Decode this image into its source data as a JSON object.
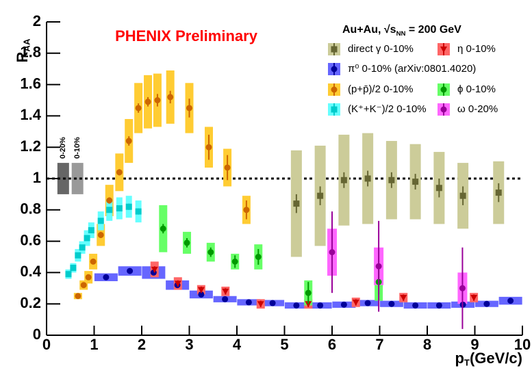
{
  "chart_data": {
    "type": "scatter",
    "title": "PHENIX Preliminary",
    "title_color": "#ff0000",
    "legend_title": [
      {
        "text": "Au+Au, √s"
      },
      {
        "text": "NN",
        "sub": true
      },
      {
        "text": " = 200 GeV"
      }
    ],
    "xlabel": [
      {
        "text": "p"
      },
      {
        "text": "T",
        "sub": true
      },
      {
        "text": "(GeV/c)"
      }
    ],
    "ylabel": [
      {
        "text": "R"
      },
      {
        "text": "AA",
        "sub": true
      }
    ],
    "xlim": [
      0,
      10
    ],
    "ylim": [
      0,
      2
    ],
    "xticks": [
      0,
      1,
      2,
      3,
      4,
      5,
      6,
      7,
      8,
      9,
      10
    ],
    "yticks": [
      0,
      0.2,
      0.4,
      0.6,
      0.8,
      1,
      1.2,
      1.4,
      1.6,
      1.8,
      2
    ],
    "reference_line": 1,
    "global_uncertainty": [
      {
        "label": "0-20%",
        "x": 0.35,
        "value": 1,
        "error": 0.1,
        "color": "#666666"
      },
      {
        "label": "0-10%",
        "x": 0.65,
        "value": 1,
        "error": 0.1,
        "color": "#999999"
      }
    ],
    "series": [
      {
        "name": "direct γ 0-10%",
        "marker": "square",
        "color": "#666633",
        "box_color": "#cccc99",
        "x": [
          5.25,
          5.75,
          6.25,
          6.75,
          7.25,
          7.75,
          8.25,
          8.75,
          9.5
        ],
        "values": [
          0.84,
          0.89,
          0.99,
          1.0,
          0.99,
          0.98,
          0.94,
          0.89,
          0.91
        ],
        "errors": [
          0.06,
          0.06,
          0.05,
          0.05,
          0.05,
          0.05,
          0.06,
          0.06,
          0.06
        ],
        "sys": [
          0.34,
          0.32,
          0.29,
          0.29,
          0.25,
          0.24,
          0.23,
          0.21,
          0.2
        ]
      },
      {
        "name": "π⁰ 0-10% (arXiv:0801.4020)",
        "marker": "circle",
        "color": "#000099",
        "box_color": "#6666ff",
        "x": [
          1.25,
          1.75,
          2.25,
          2.75,
          3.25,
          3.75,
          4.25,
          4.75,
          5.25,
          5.75,
          6.25,
          6.75,
          7.25,
          7.75,
          8.25,
          8.75,
          9.25,
          9.75
        ],
        "values": [
          0.37,
          0.41,
          0.4,
          0.32,
          0.26,
          0.23,
          0.21,
          0.205,
          0.19,
          0.19,
          0.195,
          0.205,
          0.2,
          0.19,
          0.19,
          0.195,
          0.2,
          0.22
        ],
        "errors": [
          0.01,
          0.01,
          0.01,
          0.01,
          0.01,
          0.01,
          0.01,
          0.01,
          0.01,
          0.01,
          0.01,
          0.01,
          0.01,
          0.01,
          0.01,
          0.01,
          0.01,
          0.01
        ],
        "sys": [
          0.025,
          0.03,
          0.04,
          0.03,
          0.025,
          0.02,
          0.02,
          0.02,
          0.02,
          0.02,
          0.02,
          0.02,
          0.02,
          0.02,
          0.02,
          0.02,
          0.02,
          0.025
        ]
      },
      {
        "name": "(p+p̄)/2 0-10%",
        "marker": "circle",
        "color": "#cc6600",
        "box_color": "#ffcc33",
        "x": [
          0.66,
          0.78,
          0.88,
          0.98,
          1.14,
          1.32,
          1.53,
          1.73,
          1.93,
          2.13,
          2.33,
          2.6,
          3.0,
          3.41,
          3.8,
          4.2
        ],
        "values": [
          0.25,
          0.32,
          0.37,
          0.47,
          0.64,
          0.86,
          1.04,
          1.24,
          1.45,
          1.49,
          1.5,
          1.52,
          1.45,
          1.2,
          1.07,
          0.8
        ],
        "errors": [
          0.01,
          0.01,
          0.01,
          0.01,
          0.02,
          0.02,
          0.02,
          0.03,
          0.03,
          0.03,
          0.04,
          0.04,
          0.06,
          0.08,
          0.08,
          0.06
        ],
        "sys": [
          0.02,
          0.03,
          0.04,
          0.05,
          0.07,
          0.1,
          0.12,
          0.14,
          0.16,
          0.17,
          0.17,
          0.17,
          0.16,
          0.13,
          0.12,
          0.09
        ]
      },
      {
        "name": "(K⁺+K⁻)/2 0-10%",
        "marker": "square",
        "color": "#00cccc",
        "box_color": "#66ffff",
        "x": [
          0.46,
          0.56,
          0.66,
          0.75,
          0.85,
          0.94,
          1.14,
          1.32,
          1.53,
          1.73,
          1.93
        ],
        "values": [
          0.39,
          0.43,
          0.51,
          0.56,
          0.62,
          0.67,
          0.73,
          0.8,
          0.81,
          0.82,
          0.79
        ],
        "errors": [
          0.01,
          0.01,
          0.01,
          0.01,
          0.01,
          0.01,
          0.01,
          0.01,
          0.01,
          0.02,
          0.02
        ],
        "sys": [
          0.03,
          0.03,
          0.04,
          0.04,
          0.05,
          0.05,
          0.06,
          0.07,
          0.07,
          0.07,
          0.07
        ]
      },
      {
        "name": "η 0-10%",
        "marker": "triangle-down",
        "color": "#cc0000",
        "box_color": "#ff6666",
        "x": [
          2.27,
          2.76,
          3.25,
          3.76,
          4.5,
          5.5,
          6.5,
          7.5,
          8.98
        ],
        "values": [
          0.42,
          0.33,
          0.29,
          0.28,
          0.2,
          0.2,
          0.21,
          0.24,
          0.24
        ],
        "errors": [
          0.02,
          0.02,
          0.02,
          0.02,
          0.02,
          0.02,
          0.02,
          0.02,
          0.02
        ],
        "sys": [
          0.05,
          0.04,
          0.03,
          0.03,
          0.03,
          0.03,
          0.03,
          0.03,
          0.03
        ]
      },
      {
        "name": "ϕ 0-10%",
        "marker": "circle",
        "color": "#009900",
        "box_color": "#66ff66",
        "x": [
          2.45,
          2.95,
          3.45,
          3.96,
          4.45,
          5.5,
          6.98
        ],
        "values": [
          0.68,
          0.59,
          0.53,
          0.47,
          0.5,
          0.27,
          0.34
        ],
        "errors": [
          0.03,
          0.03,
          0.03,
          0.04,
          0.05,
          0.07,
          0.08
        ],
        "sys": [
          0.15,
          0.07,
          0.06,
          0.05,
          0.08,
          0.08,
          0.12
        ]
      },
      {
        "name": "ω 0-20%",
        "marker": "circle",
        "color": "#990099",
        "box_color": "#ff66ff",
        "x": [
          6.0,
          6.98,
          8.74
        ],
        "values": [
          0.53,
          0.44,
          0.3
        ],
        "errors": [
          0.26,
          0.29,
          0.26
        ],
        "sys": [
          0.15,
          0.12,
          0.1
        ]
      }
    ]
  }
}
